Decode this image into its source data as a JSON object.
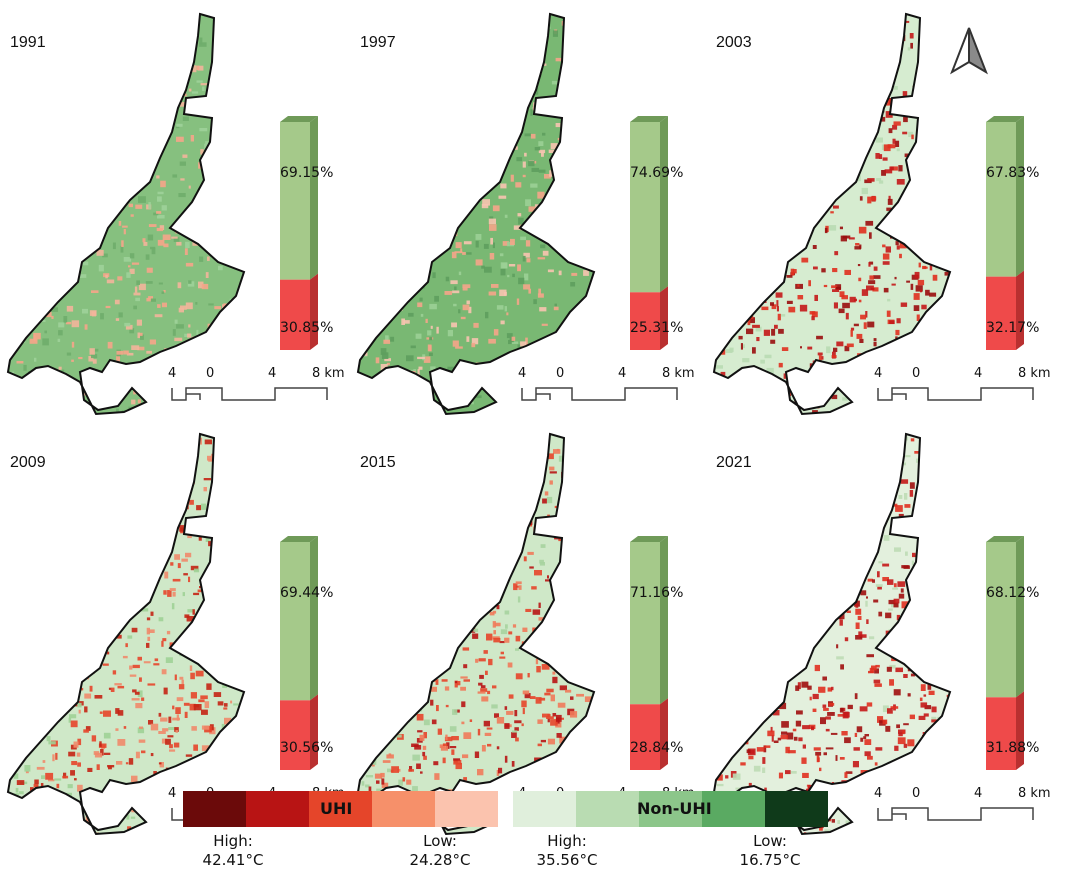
{
  "panels": [
    {
      "year": "1991",
      "non_uhi_pct": "69.15%",
      "uhi_pct": "30.85%",
      "non_uhi_value": 69.15,
      "uhi_value": 30.85
    },
    {
      "year": "1997",
      "non_uhi_pct": "74.69%",
      "uhi_pct": "25.31%",
      "non_uhi_value": 74.69,
      "uhi_value": 25.31
    },
    {
      "year": "2003",
      "non_uhi_pct": "67.83%",
      "uhi_pct": "32.17%",
      "non_uhi_value": 67.83,
      "uhi_value": 32.17
    },
    {
      "year": "2009",
      "non_uhi_pct": "69.44%",
      "uhi_pct": "30.56%",
      "non_uhi_value": 69.44,
      "uhi_value": 30.56
    },
    {
      "year": "2015",
      "non_uhi_pct": "71.16%",
      "uhi_pct": "28.84%",
      "non_uhi_value": 71.16,
      "uhi_value": 28.84
    },
    {
      "year": "2021",
      "non_uhi_pct": "68.12%",
      "uhi_pct": "31.88%",
      "non_uhi_value": 68.12,
      "uhi_value": 31.88
    }
  ],
  "scale_bar": {
    "left": "4",
    "zero": "0",
    "mid": "4",
    "right": "8 km"
  },
  "legend": {
    "uhi_title": "UHI",
    "non_uhi_title": "Non-UHI",
    "uhi_high_label": "High:",
    "uhi_high_value": "42.41°C",
    "uhi_low_label": "Low:",
    "uhi_low_value": "24.28°C",
    "non_uhi_high_label": "High:",
    "non_uhi_high_value": "35.56°C",
    "non_uhi_low_label": "Low:",
    "non_uhi_low_value": "16.75°C",
    "uhi_colors": [
      "#6b0a0a",
      "#b81414",
      "#e5452a",
      "#f6906a",
      "#fbc3ae"
    ],
    "non_uhi_colors": [
      "#e0efdc",
      "#b9dcb2",
      "#8cc68a",
      "#5aaa62",
      "#0f3a1a"
    ]
  },
  "colors": {
    "bar_green": "#a5c98a",
    "bar_green_side": "#6f9a58",
    "bar_red": "#ef4a4a",
    "bar_red_side": "#b93030"
  }
}
